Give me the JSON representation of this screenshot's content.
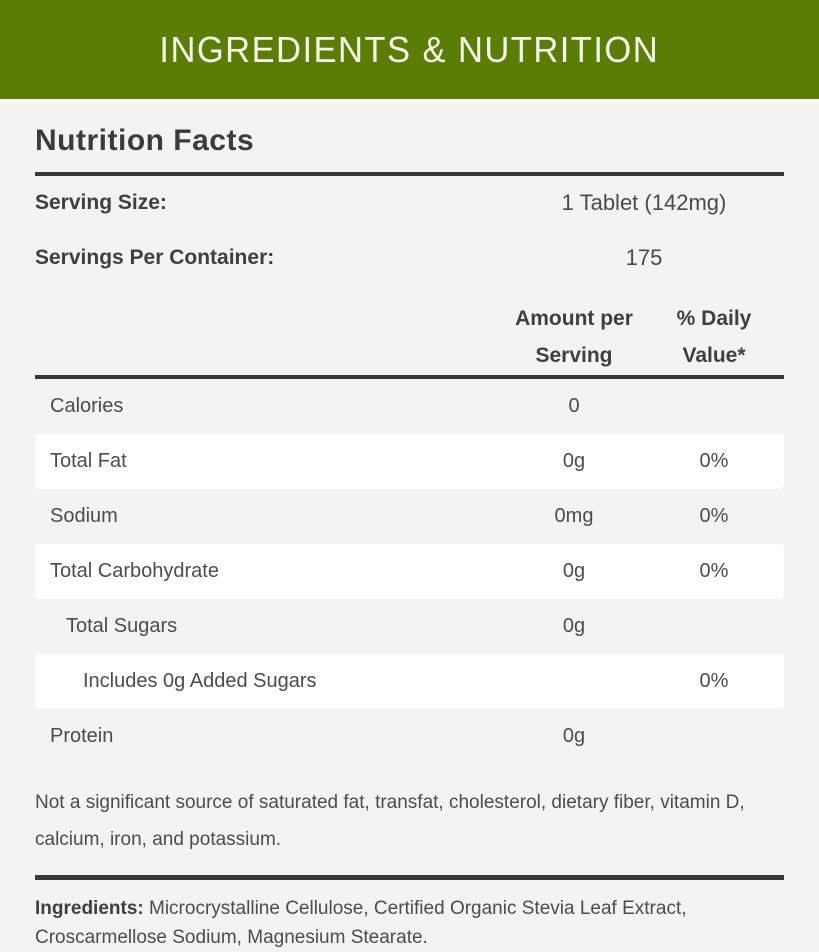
{
  "banner": {
    "title": "INGREDIENTS & NUTRITION",
    "bg_color": "#5b7d05",
    "text_color": "#f5f7ea"
  },
  "nutrition_facts": {
    "title": "Nutrition Facts",
    "serving_size": {
      "label": "Serving Size:",
      "value": "1 Tablet (142mg)"
    },
    "servings_per_container": {
      "label": "Servings Per Container:",
      "value": "175"
    },
    "column_headers": {
      "amount": "Amount per Serving",
      "daily_value": "% Daily Value*"
    },
    "rows": [
      {
        "label": "Calories",
        "amount": "0",
        "daily_value": "",
        "indent": 0
      },
      {
        "label": "Total Fat",
        "amount": "0g",
        "daily_value": "0%",
        "indent": 0
      },
      {
        "label": "Sodium",
        "amount": "0mg",
        "daily_value": "0%",
        "indent": 0
      },
      {
        "label": "Total Carbohydrate",
        "amount": "0g",
        "daily_value": "0%",
        "indent": 0
      },
      {
        "label": "Total Sugars",
        "amount": "0g",
        "daily_value": "",
        "indent": 1
      },
      {
        "label": "Includes 0g Added Sugars",
        "amount": "",
        "daily_value": "0%",
        "indent": 2
      },
      {
        "label": "Protein",
        "amount": "0g",
        "daily_value": "",
        "indent": 0
      }
    ],
    "note": "Not a significant source of saturated fat, transfat, cholesterol, dietary fiber, vitamin D, calcium, iron, and potassium.",
    "ingredients": {
      "label": "Ingredients:",
      "text": " Microcrystalline Cellulose, Certified Organic Stevia Leaf Extract, Croscarmellose Sodium, Magnesium Stearate."
    }
  },
  "colors": {
    "banner_green": "#5b7d05",
    "page_background": "#f3f3f1",
    "row_white": "#ffffff",
    "rule_dark": "#383838",
    "text_dark": "#3b3b3b",
    "text_body": "#4c4c4c"
  }
}
